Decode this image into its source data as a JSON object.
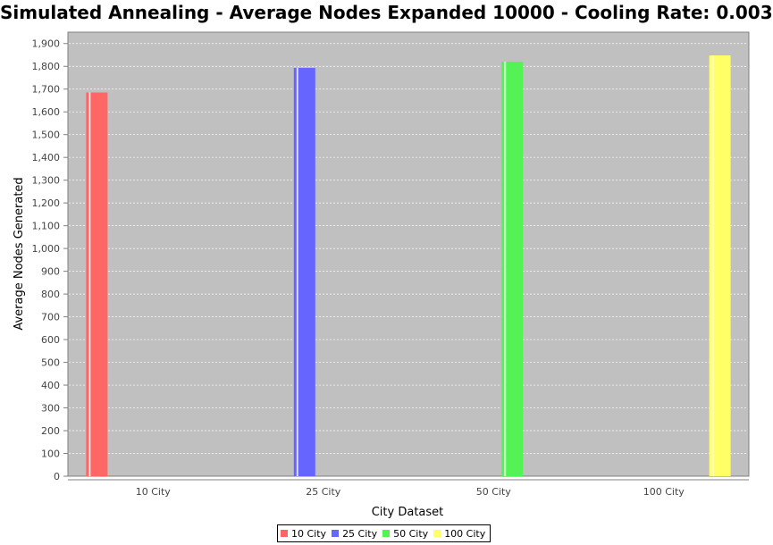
{
  "chart_data": {
    "type": "bar",
    "title": "Simulated Annealing - Average Nodes Expanded 10000 - Cooling Rate: 0.003",
    "xlabel": "City Dataset",
    "ylabel": "Average Nodes Generated",
    "categories": [
      "10 City",
      "25 City",
      "50 City",
      "100 City"
    ],
    "series": [
      {
        "name": "10 City",
        "color": "#ff6666",
        "values": [
          1685,
          null,
          null,
          null
        ]
      },
      {
        "name": "25 City",
        "color": "#6666ff",
        "values": [
          null,
          1793,
          null,
          null
        ]
      },
      {
        "name": "50 City",
        "color": "#55f255",
        "values": [
          null,
          null,
          1820,
          null
        ]
      },
      {
        "name": "100 City",
        "color": "#ffff66",
        "values": [
          null,
          null,
          null,
          1848
        ]
      }
    ],
    "ylim": [
      0,
      1950
    ],
    "yticks": [
      0,
      100,
      200,
      300,
      400,
      500,
      600,
      700,
      800,
      900,
      1000,
      1100,
      1200,
      1300,
      1400,
      1500,
      1600,
      1700,
      1800,
      1900
    ],
    "ytick_labels": [
      "0",
      "100",
      "200",
      "300",
      "400",
      "500",
      "600",
      "700",
      "800",
      "900",
      "1,000",
      "1,100",
      "1,200",
      "1,300",
      "1,400",
      "1,500",
      "1,600",
      "1,700",
      "1,800",
      "1,900"
    ],
    "grid": true,
    "plot_background": "#c0c0c0",
    "legend_position": "bottom"
  }
}
